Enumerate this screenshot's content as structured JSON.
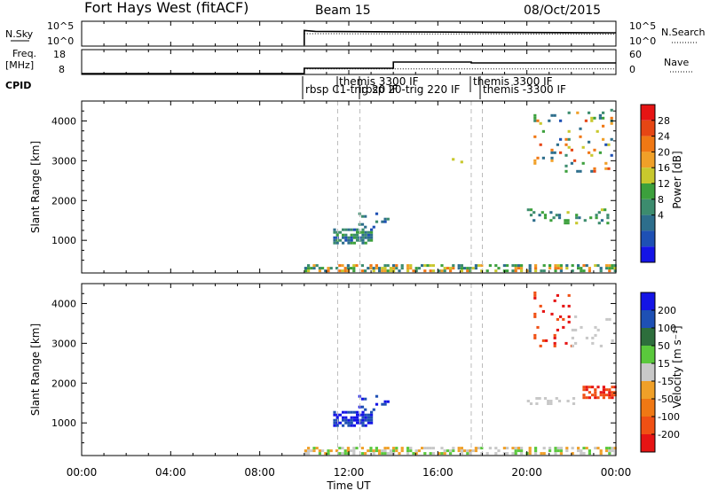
{
  "header": {
    "radar": "Fort Hays West (fitACF)",
    "beam": "Beam 15",
    "date": "08/Oct/2015"
  },
  "nsky_panel": {
    "left_label": "N.Sky",
    "left_ticks": [
      "10^5",
      "10^0"
    ],
    "right_ticks": [
      "10^5",
      "10^0"
    ],
    "right_label": "N.Search"
  },
  "freq_panel": {
    "left_label_line1": "Freq.",
    "left_label_line2": "[MHz]",
    "left_ticks": [
      "18",
      "8"
    ],
    "right_ticks": [
      "60",
      "0"
    ],
    "right_label": "Nave"
  },
  "cpid": {
    "label": "CPID",
    "entries": [
      {
        "text": "rbsp C1-trig 20 IF",
        "time": 10.0
      },
      {
        "text": "themis 3300 IF",
        "time": 11.5
      },
      {
        "text": "rbsp 20-trig 220 IF",
        "time": 12.5
      },
      {
        "text": "themis 3300 IF",
        "time": 17.5
      },
      {
        "text": "themis -3300 IF",
        "time": 18.0
      }
    ]
  },
  "x_axis": {
    "label": "Time UT",
    "ticks": [
      "00:00",
      "04:00",
      "08:00",
      "12:00",
      "16:00",
      "20:00",
      "00:00"
    ]
  },
  "power_colorbar": {
    "label": "Power [dB]",
    "ticks": [
      "28",
      "24",
      "20",
      "16",
      "12",
      "8",
      "4"
    ]
  },
  "velocity_colorbar": {
    "label": "Velocity [m s⁻¹]",
    "ticks": [
      "200",
      "100",
      "50",
      "15",
      "-15",
      "-50",
      "-100",
      "-200"
    ]
  },
  "chart_data": [
    {
      "type": "line",
      "title": "N.Sky / N.Search",
      "x_range_hours": [
        0,
        24
      ],
      "series": [
        {
          "name": "N.Sky",
          "x": [
            10.0,
            10.5,
            14,
            18,
            24
          ],
          "y_log": [
            3.2,
            3.0,
            2.9,
            2.8,
            2.7
          ]
        },
        {
          "name": "N.Search",
          "x": [
            10.0,
            24
          ],
          "y_log": [
            2.5,
            2.4
          ]
        }
      ]
    },
    {
      "type": "line",
      "title": "Freq / Nave",
      "x_range_hours": [
        0,
        24
      ],
      "series": [
        {
          "name": "Freq",
          "unit": "MHz",
          "x": [
            0,
            10.0,
            10.0,
            14.0,
            14.0,
            17.5,
            17.5,
            24
          ],
          "y": [
            8,
            8,
            10.3,
            10.3,
            13.0,
            13.0,
            12.6,
            12.6
          ]
        },
        {
          "name": "Nave",
          "x": [
            10.0,
            24
          ],
          "y": [
            12,
            12
          ]
        }
      ]
    },
    {
      "type": "heatmap",
      "title": "Power [dB]",
      "ylabel": "Slant Range [km]",
      "xlabel": "Time UT",
      "x_range_hours": [
        0,
        24
      ],
      "ylim": [
        180,
        4500
      ],
      "clim": [
        0,
        30
      ],
      "dashed_lines_hours": [
        11.5,
        12.5,
        17.5,
        18.0
      ],
      "patches": [
        {
          "t": [
            10.0,
            24.0
          ],
          "r": [
            200,
            400
          ],
          "density": 0.55,
          "value": [
            6,
            24
          ]
        },
        {
          "t": [
            11.3,
            13.0
          ],
          "r": [
            900,
            1300
          ],
          "density": 0.7,
          "value": [
            4,
            14
          ]
        },
        {
          "t": [
            12.3,
            13.8
          ],
          "r": [
            1300,
            1700
          ],
          "density": 0.18,
          "value": [
            4,
            12
          ]
        },
        {
          "t": [
            20.3,
            23.8
          ],
          "r": [
            2700,
            4300
          ],
          "density": 0.12,
          "value": [
            4,
            26
          ]
        },
        {
          "t": [
            20.0,
            23.8
          ],
          "r": [
            1400,
            1800
          ],
          "density": 0.2,
          "value": [
            8,
            16
          ]
        },
        {
          "t": [
            16.5,
            18.5
          ],
          "r": [
            2800,
            3100
          ],
          "density": 0.05,
          "value": [
            8,
            16
          ]
        }
      ]
    },
    {
      "type": "heatmap",
      "title": "Velocity [m s⁻¹]",
      "ylabel": "Slant Range [km]",
      "xlabel": "Time UT",
      "x_range_hours": [
        0,
        24
      ],
      "ylim": [
        180,
        4500
      ],
      "clim": [
        -250,
        250
      ],
      "dashed_lines_hours": [
        11.5,
        12.5,
        17.5,
        18.0
      ],
      "patches": [
        {
          "t": [
            10.0,
            24.0
          ],
          "r": [
            200,
            400
          ],
          "density": 0.55,
          "value": [
            -40,
            40
          ]
        },
        {
          "t": [
            11.3,
            13.0
          ],
          "r": [
            900,
            1300
          ],
          "density": 0.7,
          "value": [
            150,
            240
          ]
        },
        {
          "t": [
            12.3,
            13.8
          ],
          "r": [
            1300,
            1700
          ],
          "density": 0.18,
          "value": [
            150,
            240
          ]
        },
        {
          "t": [
            20.3,
            22.0
          ],
          "r": [
            2900,
            4300
          ],
          "density": 0.14,
          "value": [
            -240,
            -150
          ]
        },
        {
          "t": [
            22.0,
            23.8
          ],
          "r": [
            2900,
            3700
          ],
          "density": 0.12,
          "value": [
            -15,
            15
          ]
        },
        {
          "t": [
            20.0,
            22.5
          ],
          "r": [
            1450,
            1650
          ],
          "density": 0.2,
          "value": [
            -15,
            15
          ]
        },
        {
          "t": [
            22.5,
            24.0
          ],
          "r": [
            1600,
            1900
          ],
          "density": 0.5,
          "value": [
            -240,
            -150
          ]
        }
      ]
    }
  ]
}
